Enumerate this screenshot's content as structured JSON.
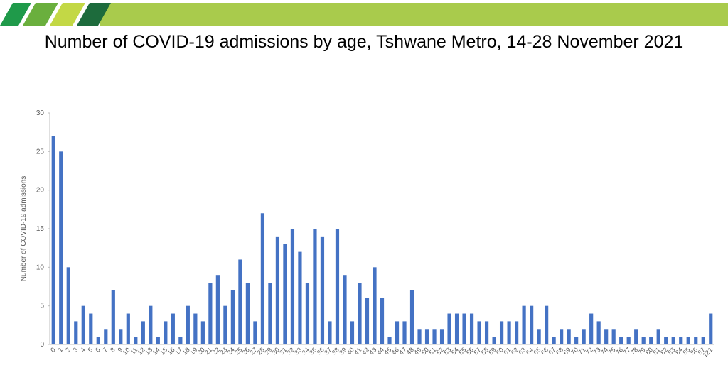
{
  "chart_data": {
    "type": "bar",
    "title": "Number of COVID-19 admissions by age, Tshwane Metro, 14-28 November 2021",
    "y_label": "Number of COVID-19 admissions",
    "categories": [
      "0",
      "1",
      "2",
      "3",
      "4",
      "5",
      "6",
      "7",
      "8",
      "9",
      "10",
      "11",
      "12",
      "13",
      "14",
      "15",
      "16",
      "17",
      "18",
      "19",
      "20",
      "21",
      "22",
      "23",
      "24",
      "25",
      "26",
      "27",
      "28",
      "29",
      "30",
      "31",
      "32",
      "33",
      "34",
      "35",
      "36",
      "37",
      "38",
      "39",
      "40",
      "41",
      "42",
      "43",
      "44",
      "45",
      "46",
      "47",
      "48",
      "49",
      "50",
      "51",
      "52",
      "53",
      "54",
      "55",
      "56",
      "57",
      "58",
      "59",
      "60",
      "61",
      "62",
      "63",
      "64",
      "65",
      "66",
      "67",
      "68",
      "69",
      "70",
      "71",
      "72",
      "73",
      "74",
      "75",
      "76",
      "77",
      "78",
      "79",
      "80",
      "81",
      "82",
      "83",
      "84",
      "85",
      "86",
      "87",
      "121"
    ],
    "values": [
      27,
      25,
      10,
      3,
      5,
      4,
      1,
      2,
      7,
      2,
      4,
      1,
      3,
      5,
      1,
      3,
      4,
      1,
      5,
      4,
      3,
      8,
      9,
      5,
      7,
      11,
      8,
      3,
      17,
      8,
      14,
      13,
      15,
      12,
      8,
      15,
      14,
      3,
      15,
      9,
      3,
      8,
      6,
      10,
      6,
      1,
      3,
      3,
      7,
      2,
      2,
      2,
      2,
      4,
      4,
      4,
      4,
      3,
      3,
      1,
      3,
      3,
      3,
      5,
      5,
      2,
      5,
      1,
      2,
      2,
      1,
      2,
      4,
      3,
      2,
      2,
      1,
      1,
      2,
      1,
      1,
      2,
      1,
      1,
      1,
      1,
      1,
      1,
      4
    ],
    "color": "#4472c4",
    "ylim": [
      0,
      30
    ],
    "yticks": [
      0,
      5,
      10,
      15,
      20,
      25,
      30
    ],
    "grid": false
  }
}
